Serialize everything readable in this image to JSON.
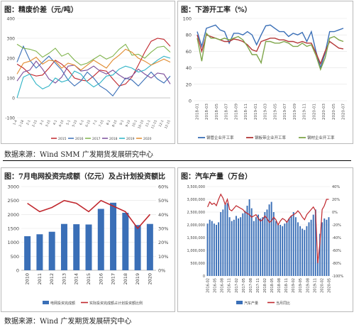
{
  "panel1": {
    "title": "图：精废价差（元/吨）",
    "chart_data": {
      "type": "line",
      "ylim": [
        -100,
        400
      ],
      "yticks": [
        400,
        300,
        200,
        100,
        0,
        -100
      ],
      "x_tick_labels": [
        "1-4",
        "1-18",
        "2-1",
        "2-15",
        "3-1",
        "3-15",
        "4-1",
        "4-15",
        "5-1",
        "5-15",
        "6-1",
        "6-15",
        "7-1",
        "7-15",
        "8-1",
        "8-15",
        "9-1",
        "9-15",
        "10-1",
        "10-15",
        "11-1",
        "11-15",
        "12-1",
        "12-15"
      ],
      "series": [
        {
          "name": "2015",
          "color": "#c0272d",
          "values": [
            170,
            150,
            120,
            110,
            115,
            150,
            190,
            170,
            140,
            100,
            90,
            85,
            110,
            140,
            135,
            95,
            60,
            70,
            105,
            165,
            230,
            285,
            300,
            295,
            260
          ]
        },
        {
          "name": "2016",
          "color": "#3a6fb7",
          "values": [
            180,
            260,
            190,
            150,
            180,
            210,
            175,
            140,
            90,
            60,
            85,
            130,
            100,
            60,
            40,
            10,
            55,
            100,
            90,
            60,
            95,
            130,
            95,
            75,
            110
          ]
        },
        {
          "name": "2017",
          "color": "#7fb34b",
          "values": [
            270,
            250,
            245,
            235,
            205,
            225,
            250,
            210,
            225,
            190,
            165,
            175,
            195,
            215,
            195,
            210,
            245,
            270,
            215,
            220,
            200,
            230,
            255,
            260,
            230
          ]
        },
        {
          "name": "2018",
          "color": "#7b4c9a",
          "values": [
            85,
            130,
            140,
            185,
            145,
            95,
            75,
            105,
            160,
            165,
            135,
            140,
            160,
            135,
            120,
            140,
            115,
            95,
            110,
            145,
            120,
            100,
            125,
            120,
            70
          ]
        },
        {
          "name": "2019",
          "color": "#2bb2c5",
          "values": [
            0,
            105,
            120,
            70,
            45,
            60,
            100,
            80,
            90,
            135,
            120,
            80,
            55,
            75,
            110,
            115,
            145,
            160,
            150,
            130,
            140,
            165,
            190,
            210,
            200
          ]
        },
        {
          "name": "2020",
          "color": "#e08a2e",
          "values": [
            120,
            175,
            185,
            205,
            170,
            190,
            185,
            150,
            175,
            165,
            140,
            165,
            190,
            170,
            150,
            190,
            215,
            245,
            230,
            200,
            185,
            165,
            180,
            195,
            180
          ]
        }
      ]
    }
  },
  "panel2": {
    "title": "图：下游开工率（%）",
    "chart_data": {
      "type": "line",
      "ylim": [
        0,
        100
      ],
      "yticks": [
        100,
        80,
        60,
        40,
        20,
        0
      ],
      "x_tick_labels": [
        "2018-01",
        "2018-03",
        "2018-05",
        "2018-07",
        "2018-09",
        "2018-11",
        "2019-01",
        "2019-03",
        "2019-05",
        "2019-07",
        "2019-09",
        "2019-11",
        "2020-01",
        "2020-03",
        "2020-05",
        "2020-07"
      ],
      "series": [
        {
          "name": "钢管企业开工率",
          "color": "#3a6fb7",
          "values": [
            84,
            66,
            88,
            90,
            92,
            86,
            84,
            70,
            82,
            82,
            80,
            84,
            80,
            68,
            80,
            91,
            92,
            88,
            84,
            84,
            78,
            82,
            80,
            83,
            72,
            84,
            60,
            40,
            58,
            84,
            84,
            86,
            88
          ]
        },
        {
          "name": "钢板带企业开工率",
          "color": "#b33737",
          "values": [
            80,
            60,
            80,
            78,
            76,
            74,
            72,
            72,
            75,
            74,
            72,
            68,
            62,
            60,
            72,
            74,
            76,
            76,
            74,
            74,
            72,
            72,
            70,
            72,
            70,
            70,
            58,
            45,
            60,
            72,
            68,
            64,
            63
          ]
        },
        {
          "name": "钢材企业开工率",
          "color": "#7fa64b",
          "values": [
            76,
            48,
            82,
            76,
            76,
            74,
            76,
            74,
            76,
            78,
            74,
            66,
            56,
            56,
            46,
            72,
            72,
            70,
            70,
            72,
            70,
            66,
            66,
            70,
            66,
            68,
            55,
            38,
            52,
            76,
            78,
            74,
            72
          ]
        }
      ]
    }
  },
  "source1": "数据来源：Wind SMM 广发期货发展研究中心",
  "panel3": {
    "title": "图：7月电网投资完成额（亿元）及占计划投资额比",
    "chart_data": {
      "type": "bar",
      "categories": [
        "2010",
        "2011",
        "2012",
        "2013",
        "2014",
        "2015",
        "2016",
        "2017",
        "2018",
        "2019",
        "2020"
      ],
      "bar_series": {
        "name": "电网投资完成额",
        "color": "#3a6fb7",
        "values": [
          1220,
          1290,
          1380,
          1660,
          1650,
          1640,
          2200,
          2420,
          2060,
          1620,
          1660
        ]
      },
      "line_series": {
        "name": "实际投资完成额占计划投资额比例",
        "color": "#c0272d",
        "values": [
          48,
          42,
          45,
          50,
          48,
          42,
          50,
          46,
          42,
          30,
          40
        ]
      },
      "ylim_left": [
        0,
        3000
      ],
      "ylim_right": [
        0,
        60
      ],
      "yticks_left": [
        3000,
        2500,
        2000,
        1500,
        1000,
        500,
        0
      ],
      "yticks_right": [
        "60%",
        "50%",
        "40%",
        "30%",
        "20%",
        "10%",
        "0%"
      ]
    }
  },
  "panel4": {
    "title": "图：汽车产量（万台）",
    "chart_data": {
      "type": "bar",
      "x_tick_labels": [
        "2016-02",
        "2016-05",
        "2016-08",
        "2016-11",
        "2017-02",
        "2017-05",
        "2017-08",
        "2017-11",
        "2018-02",
        "2018-05",
        "2018-08",
        "2018-11",
        "2019-02",
        "2019-05",
        "2019-08",
        "2019-11",
        "2020-02",
        "2020-05"
      ],
      "bar_series": {
        "name": "汽车产量",
        "color": "#3a6fb7",
        "values": [
          2050000,
          2200000,
          2150000,
          2050000,
          2000000,
          2100000,
          2500000,
          2600000,
          2800000,
          2850000,
          2300000,
          2150000,
          2200000,
          2350000,
          2250000,
          2300000,
          2450000,
          2550000,
          2750000,
          3000000,
          2650000,
          2150000,
          2300000,
          2400000,
          2250000,
          2300000,
          2500000,
          2600000,
          2800000,
          2900000,
          2500000,
          2150000,
          2050000,
          2000000,
          1950000,
          2050000,
          2150000,
          2250000,
          2350000,
          2500000,
          2300000,
          2100000,
          1950000,
          1850000,
          1800000,
          1950000,
          2100000,
          2200000,
          2400000,
          2600000,
          750000,
          1650000,
          2100000,
          2250000,
          2200000,
          2300000
        ]
      },
      "line_series": {
        "name": "当月同比",
        "color": "#c0272d",
        "values": [
          8,
          16,
          12,
          14,
          10,
          20,
          28,
          22,
          12,
          20,
          4,
          2,
          6,
          10,
          8,
          6,
          4,
          0,
          -2,
          -4,
          -8,
          -6,
          -4,
          -10,
          -14,
          -12,
          -6,
          -10,
          -16,
          -14,
          -8,
          -12,
          -20,
          -14,
          -10,
          -12,
          -16,
          -10,
          -6,
          -4,
          -2,
          2,
          -2,
          -8,
          -12,
          -4,
          0,
          4,
          8,
          2,
          -80,
          -48,
          4,
          10,
          20,
          20
        ]
      },
      "ylim_left": [
        0,
        3500000
      ],
      "ylim_right": [
        -100,
        40
      ],
      "yticks_left": [
        "3,500,000",
        "3,000,000",
        "2,500,000",
        "2,000,000",
        "1,500,000",
        "1,000,000",
        "500,000",
        "0"
      ],
      "yticks_right": [
        "40%",
        "20%",
        "0%",
        "-20%",
        "-40%",
        "-60%",
        "-80%",
        "-100%"
      ]
    }
  },
  "source2": "数据来源：Wind 广发期货发展研究中心"
}
